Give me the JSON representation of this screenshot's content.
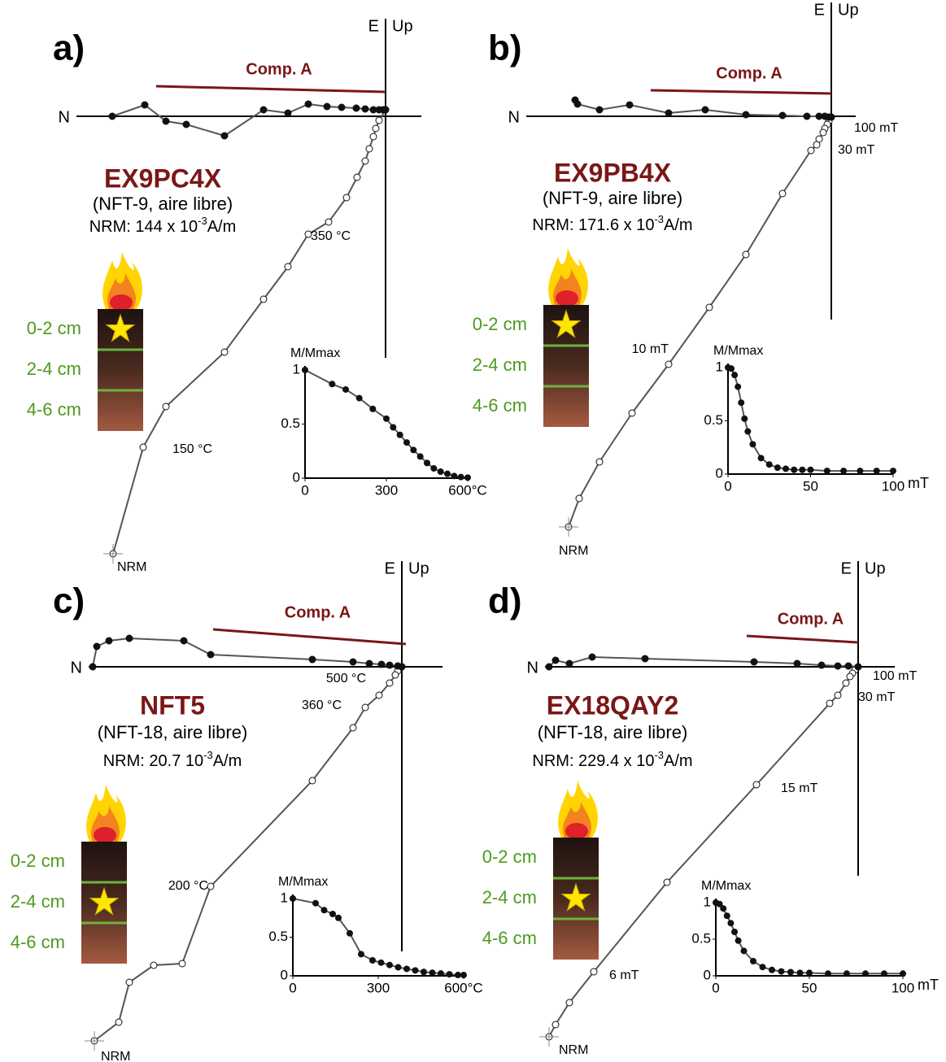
{
  "panels": [
    {
      "letter": "a)",
      "sample": "EX9PC4X",
      "site": "(NFT-9, aire libre)",
      "nrm": [
        "NRM: 144 x 10",
        "-3",
        "A/m"
      ],
      "n": "N",
      "e": "E",
      "up": "Up",
      "component": "Comp. A",
      "annotations": [
        "350 °C",
        "150 °C",
        "NRM"
      ],
      "depths": [
        "0-2 cm",
        "2-4 cm",
        "4-6 cm"
      ]
    },
    {
      "letter": "b)",
      "sample": "EX9PB4X",
      "site": "(NFT-9, aire libre)",
      "nrm": [
        "NRM:  171.6 x 10",
        "-3",
        "A/m"
      ],
      "n": "N",
      "e": "E",
      "up": "Up",
      "component": "Comp. A",
      "annotations": [
        "100 mT",
        "30 mT",
        "10 mT",
        "NRM"
      ],
      "depths": [
        "0-2 cm",
        "2-4 cm",
        "4-6 cm"
      ]
    },
    {
      "letter": "c)",
      "sample": "NFT5",
      "site": "(NFT-18, aire libre)",
      "nrm": [
        "NRM: 20.7 10",
        "-3",
        "A/m"
      ],
      "n": "N",
      "e": "E",
      "up": "Up",
      "component": "Comp. A",
      "annotations": [
        "500 °C",
        "360 °C",
        "200 °C",
        "NRM"
      ],
      "depths": [
        "0-2 cm",
        "2-4 cm",
        "4-6 cm"
      ]
    },
    {
      "letter": "d)",
      "sample": "EX18QAY2",
      "site": "(NFT-18, aire libre)",
      "nrm": [
        "NRM: 229.4 x 10",
        "-3",
        "A/m"
      ],
      "n": "N",
      "e": "E",
      "up": "Up",
      "component": "Comp. A",
      "annotations": [
        "100 mT",
        "30 mT",
        "15 mT",
        "6 mT",
        "NRM"
      ],
      "depths": [
        "0-2 cm",
        "2-4 cm",
        "4-6 cm"
      ]
    }
  ],
  "chart_data": [
    {
      "type": "line",
      "ylabel": "M/Mmax",
      "color": "#555555",
      "x": [
        0,
        100,
        150,
        200,
        250,
        300,
        325,
        350,
        375,
        400,
        425,
        450,
        475,
        500,
        525,
        550,
        575,
        600
      ],
      "values": [
        1,
        0.87,
        0.82,
        0.74,
        0.64,
        0.55,
        0.47,
        0.4,
        0.33,
        0.26,
        0.2,
        0.14,
        0.09,
        0.06,
        0.04,
        0.02,
        0.01,
        0.005
      ],
      "xlim": [
        0,
        600
      ],
      "ylim": [
        0,
        1
      ],
      "xticks": [
        0,
        300,
        {
          "value": 600,
          "label": "600°C"
        }
      ],
      "yticks": [
        0,
        0.5,
        1
      ]
    },
    {
      "type": "line",
      "ylabel": "M/Mmax",
      "xlabel": "mT",
      "color": "#555555",
      "x": [
        0,
        2,
        4,
        6,
        8,
        10,
        12,
        15,
        20,
        25,
        30,
        35,
        40,
        45,
        50,
        60,
        70,
        80,
        90,
        100
      ],
      "values": [
        1,
        0.99,
        0.93,
        0.82,
        0.67,
        0.52,
        0.4,
        0.28,
        0.15,
        0.09,
        0.06,
        0.05,
        0.04,
        0.04,
        0.04,
        0.03,
        0.03,
        0.03,
        0.03,
        0.03
      ],
      "xlim": [
        0,
        100
      ],
      "ylim": [
        0,
        1
      ],
      "xticks": [
        0,
        50,
        100
      ],
      "yticks": [
        0,
        0.5,
        1
      ]
    },
    {
      "type": "line",
      "ylabel": "M/Mmax",
      "color": "#555555",
      "x": [
        0,
        80,
        110,
        140,
        160,
        200,
        240,
        280,
        310,
        340,
        370,
        400,
        430,
        460,
        490,
        520,
        550,
        580,
        600
      ],
      "values": [
        1,
        0.94,
        0.85,
        0.8,
        0.75,
        0.55,
        0.28,
        0.2,
        0.17,
        0.14,
        0.11,
        0.09,
        0.07,
        0.05,
        0.04,
        0.03,
        0.02,
        0.01,
        0.01
      ],
      "xlim": [
        0,
        600
      ],
      "ylim": [
        0,
        1
      ],
      "xticks": [
        0,
        300,
        {
          "value": 600,
          "label": "600°C"
        }
      ],
      "yticks": [
        0,
        0.5,
        1
      ]
    },
    {
      "type": "line",
      "ylabel": "M/Mmax",
      "xlabel": "mT",
      "color": "#555555",
      "x": [
        0,
        2,
        4,
        6,
        8,
        10,
        12,
        15,
        20,
        25,
        30,
        35,
        40,
        45,
        50,
        60,
        70,
        80,
        90,
        100
      ],
      "values": [
        1,
        0.98,
        0.92,
        0.82,
        0.72,
        0.6,
        0.48,
        0.34,
        0.2,
        0.12,
        0.08,
        0.06,
        0.05,
        0.04,
        0.04,
        0.03,
        0.03,
        0.03,
        0.03,
        0.03
      ],
      "xlim": [
        0,
        100
      ],
      "ylim": [
        0,
        1
      ],
      "xticks": [
        0,
        50,
        100
      ],
      "yticks": [
        0,
        0.5,
        1
      ]
    }
  ]
}
